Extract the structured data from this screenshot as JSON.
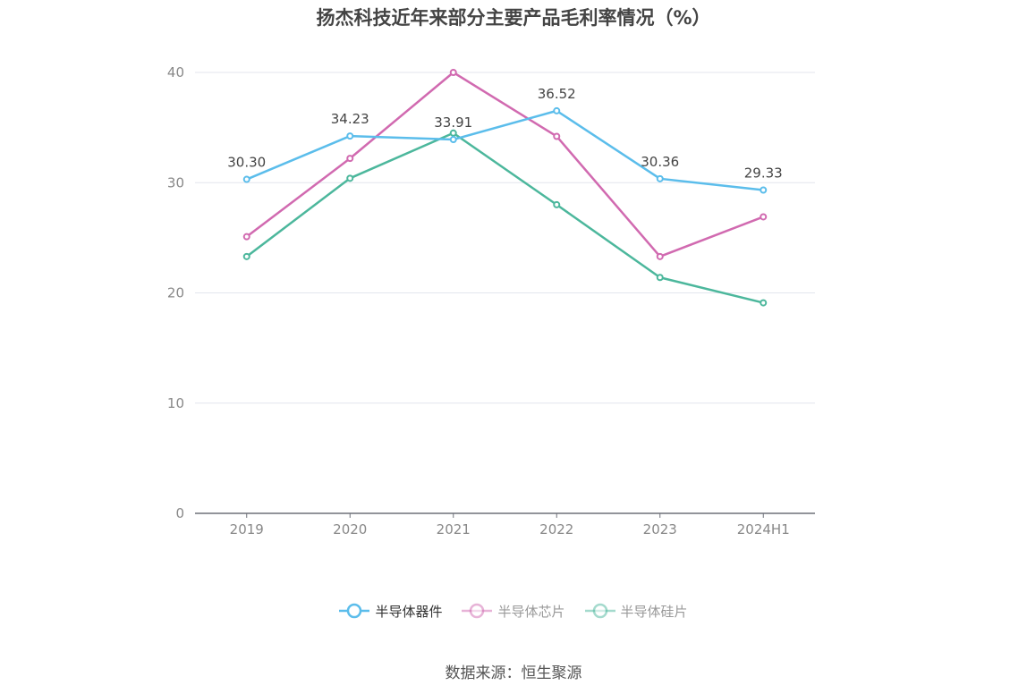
{
  "chart_data": {
    "type": "line",
    "title": "扬杰科技近年来部分主要产品毛利率情况（%）",
    "categories": [
      "2019",
      "2020",
      "2021",
      "2022",
      "2023",
      "2024H1"
    ],
    "ylim": [
      0,
      40
    ],
    "yticks": [
      0,
      10,
      20,
      30,
      40
    ],
    "grid": true,
    "legend_position": "bottom",
    "series": [
      {
        "name": "半导体器件",
        "color": "#5bbdeb",
        "values": [
          30.3,
          34.23,
          33.91,
          36.52,
          30.36,
          29.33
        ],
        "labels": [
          "30.30",
          "34.23",
          "33.91",
          "36.52",
          "30.36",
          "29.33"
        ]
      },
      {
        "name": "半导体芯片",
        "color": "#d16ab0",
        "values": [
          25.1,
          32.2,
          40.0,
          34.2,
          23.3,
          26.9
        ]
      },
      {
        "name": "半导体硅片",
        "color": "#4cb79c",
        "values": [
          23.3,
          30.4,
          34.5,
          28.0,
          21.4,
          19.1
        ]
      }
    ],
    "legend_active": [
      "active",
      "inactive",
      "inactive"
    ]
  },
  "source": "数据来源：恒生聚源"
}
